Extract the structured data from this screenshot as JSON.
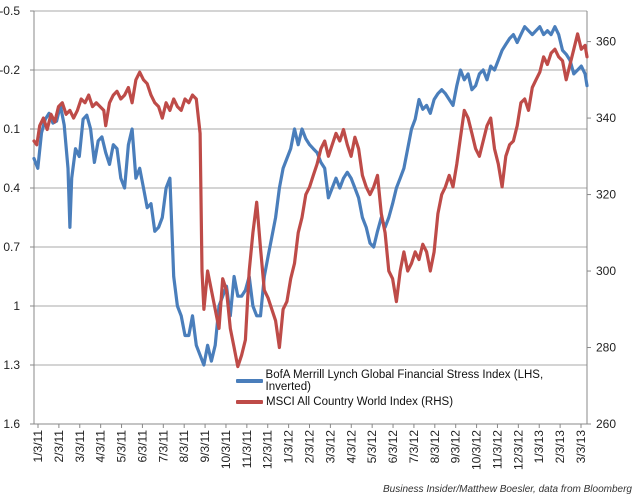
{
  "chart_data": {
    "type": "line",
    "title": "",
    "x_ticks": [
      "1/3/11",
      "2/3/11",
      "3/3/11",
      "4/3/11",
      "5/3/11",
      "6/3/11",
      "7/3/11",
      "8/3/11",
      "9/3/11",
      "10/3/11",
      "11/3/11",
      "12/3/11",
      "1/3/12",
      "2/3/12",
      "3/3/12",
      "4/3/12",
      "5/3/12",
      "6/3/12",
      "7/3/12",
      "8/3/12",
      "9/3/12",
      "10/3/12",
      "11/3/12",
      "12/3/12",
      "1/3/13",
      "2/3/13",
      "3/3/13"
    ],
    "left_axis": {
      "ticks": [
        "-0.5",
        "-0.2",
        "0.1",
        "0.4",
        "0.7",
        "1",
        "1.3",
        "1.6"
      ],
      "min": -0.5,
      "max": 1.6,
      "inverted": true
    },
    "right_axis": {
      "ticks": [
        "360",
        "340",
        "320",
        "300",
        "280",
        "260"
      ],
      "min": 260,
      "max": 368
    },
    "grid": true,
    "legend_position": "bottom-right",
    "series": [
      {
        "name": "BofA Merrill Lynch Global Financial Stress Index (LHS, Inverted)",
        "color": "#4a7ebb",
        "axis": "left",
        "points": [
          [
            0,
            0.25
          ],
          [
            4,
            0.3
          ],
          [
            8,
            0.12
          ],
          [
            12,
            0.05
          ],
          [
            16,
            0.02
          ],
          [
            20,
            0.07
          ],
          [
            24,
            0.06
          ],
          [
            28,
            -0.02
          ],
          [
            32,
            0.08
          ],
          [
            36,
            0.3
          ],
          [
            38,
            0.6
          ],
          [
            40,
            0.35
          ],
          [
            44,
            0.2
          ],
          [
            48,
            0.24
          ],
          [
            52,
            0.05
          ],
          [
            56,
            0.03
          ],
          [
            60,
            0.1
          ],
          [
            64,
            0.27
          ],
          [
            68,
            0.16
          ],
          [
            72,
            0.14
          ],
          [
            76,
            0.22
          ],
          [
            80,
            0.28
          ],
          [
            84,
            0.18
          ],
          [
            88,
            0.2
          ],
          [
            92,
            0.35
          ],
          [
            96,
            0.4
          ],
          [
            100,
            0.18
          ],
          [
            104,
            0.1
          ],
          [
            108,
            0.35
          ],
          [
            112,
            0.3
          ],
          [
            116,
            0.4
          ],
          [
            120,
            0.5
          ],
          [
            124,
            0.48
          ],
          [
            128,
            0.62
          ],
          [
            132,
            0.6
          ],
          [
            136,
            0.55
          ],
          [
            140,
            0.4
          ],
          [
            144,
            0.35
          ],
          [
            148,
            0.85
          ],
          [
            152,
            1.0
          ],
          [
            156,
            1.05
          ],
          [
            160,
            1.15
          ],
          [
            164,
            1.15
          ],
          [
            168,
            1.05
          ],
          [
            172,
            1.2
          ],
          [
            176,
            1.25
          ],
          [
            180,
            1.3
          ],
          [
            184,
            1.2
          ],
          [
            188,
            1.28
          ],
          [
            192,
            1.2
          ],
          [
            196,
            1.0
          ],
          [
            200,
            0.95
          ],
          [
            204,
            0.9
          ],
          [
            208,
            1.05
          ],
          [
            212,
            0.85
          ],
          [
            216,
            0.95
          ],
          [
            220,
            0.95
          ],
          [
            224,
            0.92
          ],
          [
            228,
            0.85
          ],
          [
            232,
            1.0
          ],
          [
            236,
            1.05
          ],
          [
            240,
            1.05
          ],
          [
            244,
            0.85
          ],
          [
            248,
            0.75
          ],
          [
            252,
            0.65
          ],
          [
            256,
            0.55
          ],
          [
            260,
            0.4
          ],
          [
            264,
            0.3
          ],
          [
            268,
            0.25
          ],
          [
            272,
            0.2
          ],
          [
            276,
            0.1
          ],
          [
            280,
            0.18
          ],
          [
            284,
            0.1
          ],
          [
            288,
            0.15
          ],
          [
            292,
            0.18
          ],
          [
            296,
            0.2
          ],
          [
            300,
            0.22
          ],
          [
            304,
            0.27
          ],
          [
            308,
            0.3
          ],
          [
            312,
            0.45
          ],
          [
            316,
            0.4
          ],
          [
            320,
            0.35
          ],
          [
            324,
            0.4
          ],
          [
            328,
            0.35
          ],
          [
            332,
            0.32
          ],
          [
            336,
            0.35
          ],
          [
            340,
            0.4
          ],
          [
            344,
            0.45
          ],
          [
            348,
            0.55
          ],
          [
            352,
            0.6
          ],
          [
            356,
            0.68
          ],
          [
            360,
            0.7
          ],
          [
            364,
            0.62
          ],
          [
            368,
            0.55
          ],
          [
            372,
            0.6
          ],
          [
            376,
            0.55
          ],
          [
            380,
            0.48
          ],
          [
            384,
            0.4
          ],
          [
            388,
            0.35
          ],
          [
            392,
            0.3
          ],
          [
            396,
            0.2
          ],
          [
            400,
            0.1
          ],
          [
            404,
            0.05
          ],
          [
            408,
            -0.05
          ],
          [
            412,
            0.0
          ],
          [
            416,
            -0.02
          ],
          [
            420,
            0.02
          ],
          [
            424,
            -0.05
          ],
          [
            428,
            -0.08
          ],
          [
            432,
            -0.1
          ],
          [
            436,
            -0.08
          ],
          [
            440,
            -0.05
          ],
          [
            444,
            -0.02
          ],
          [
            448,
            -0.12
          ],
          [
            452,
            -0.2
          ],
          [
            456,
            -0.15
          ],
          [
            460,
            -0.18
          ],
          [
            464,
            -0.1
          ],
          [
            468,
            -0.12
          ],
          [
            472,
            -0.18
          ],
          [
            476,
            -0.2
          ],
          [
            480,
            -0.15
          ],
          [
            484,
            -0.22
          ],
          [
            488,
            -0.2
          ],
          [
            492,
            -0.25
          ],
          [
            496,
            -0.3
          ],
          [
            500,
            -0.33
          ],
          [
            504,
            -0.36
          ],
          [
            508,
            -0.38
          ],
          [
            512,
            -0.34
          ],
          [
            516,
            -0.38
          ],
          [
            520,
            -0.42
          ],
          [
            524,
            -0.4
          ],
          [
            528,
            -0.38
          ],
          [
            532,
            -0.4
          ],
          [
            536,
            -0.42
          ],
          [
            540,
            -0.38
          ],
          [
            544,
            -0.4
          ],
          [
            548,
            -0.38
          ],
          [
            552,
            -0.42
          ],
          [
            556,
            -0.38
          ],
          [
            560,
            -0.3
          ],
          [
            564,
            -0.28
          ],
          [
            568,
            -0.25
          ],
          [
            572,
            -0.18
          ],
          [
            576,
            -0.2
          ],
          [
            580,
            -0.22
          ],
          [
            584,
            -0.18
          ],
          [
            586,
            -0.12
          ]
        ]
      },
      {
        "name": "MSCI All Country World Index (RHS)",
        "color": "#be4b48",
        "axis": "right",
        "points": [
          [
            0,
            334
          ],
          [
            3,
            333
          ],
          [
            6,
            338
          ],
          [
            10,
            340
          ],
          [
            14,
            337
          ],
          [
            18,
            341
          ],
          [
            22,
            339
          ],
          [
            26,
            343
          ],
          [
            30,
            344
          ],
          [
            34,
            341
          ],
          [
            38,
            342
          ],
          [
            42,
            340
          ],
          [
            46,
            342
          ],
          [
            50,
            345
          ],
          [
            54,
            344
          ],
          [
            58,
            346
          ],
          [
            62,
            343
          ],
          [
            66,
            344
          ],
          [
            70,
            343
          ],
          [
            74,
            342
          ],
          [
            76,
            338
          ],
          [
            80,
            344
          ],
          [
            84,
            346
          ],
          [
            88,
            347
          ],
          [
            92,
            345
          ],
          [
            96,
            346
          ],
          [
            100,
            348
          ],
          [
            104,
            344
          ],
          [
            108,
            350
          ],
          [
            112,
            352
          ],
          [
            116,
            350
          ],
          [
            120,
            349
          ],
          [
            124,
            346
          ],
          [
            128,
            344
          ],
          [
            132,
            343
          ],
          [
            136,
            340
          ],
          [
            140,
            344
          ],
          [
            144,
            342
          ],
          [
            148,
            345
          ],
          [
            152,
            343
          ],
          [
            156,
            342
          ],
          [
            160,
            345
          ],
          [
            164,
            344
          ],
          [
            168,
            346
          ],
          [
            172,
            345
          ],
          [
            176,
            336
          ],
          [
            178,
            300
          ],
          [
            180,
            290
          ],
          [
            184,
            300
          ],
          [
            188,
            295
          ],
          [
            192,
            290
          ],
          [
            196,
            285
          ],
          [
            200,
            298
          ],
          [
            204,
            295
          ],
          [
            208,
            285
          ],
          [
            212,
            280
          ],
          [
            216,
            275
          ],
          [
            220,
            278
          ],
          [
            224,
            282
          ],
          [
            228,
            300
          ],
          [
            232,
            310
          ],
          [
            236,
            318
          ],
          [
            240,
            306
          ],
          [
            244,
            295
          ],
          [
            248,
            293
          ],
          [
            252,
            290
          ],
          [
            256,
            287
          ],
          [
            260,
            280
          ],
          [
            264,
            290
          ],
          [
            268,
            292
          ],
          [
            272,
            298
          ],
          [
            276,
            302
          ],
          [
            280,
            310
          ],
          [
            284,
            314
          ],
          [
            288,
            320
          ],
          [
            292,
            322
          ],
          [
            296,
            325
          ],
          [
            300,
            328
          ],
          [
            304,
            332
          ],
          [
            308,
            334
          ],
          [
            312,
            330
          ],
          [
            316,
            333
          ],
          [
            320,
            336
          ],
          [
            324,
            334
          ],
          [
            328,
            337
          ],
          [
            332,
            333
          ],
          [
            336,
            330
          ],
          [
            340,
            335
          ],
          [
            344,
            332
          ],
          [
            348,
            325
          ],
          [
            352,
            322
          ],
          [
            356,
            320
          ],
          [
            360,
            322
          ],
          [
            364,
            325
          ],
          [
            368,
            315
          ],
          [
            372,
            310
          ],
          [
            376,
            300
          ],
          [
            380,
            298
          ],
          [
            384,
            292
          ],
          [
            388,
            300
          ],
          [
            392,
            305
          ],
          [
            396,
            300
          ],
          [
            400,
            302
          ],
          [
            404,
            305
          ],
          [
            408,
            303
          ],
          [
            412,
            307
          ],
          [
            416,
            305
          ],
          [
            420,
            300
          ],
          [
            424,
            305
          ],
          [
            428,
            315
          ],
          [
            432,
            320
          ],
          [
            436,
            322
          ],
          [
            440,
            325
          ],
          [
            444,
            322
          ],
          [
            448,
            328
          ],
          [
            452,
            335
          ],
          [
            456,
            342
          ],
          [
            460,
            340
          ],
          [
            464,
            336
          ],
          [
            468,
            332
          ],
          [
            472,
            330
          ],
          [
            476,
            334
          ],
          [
            480,
            338
          ],
          [
            484,
            340
          ],
          [
            488,
            332
          ],
          [
            492,
            328
          ],
          [
            496,
            322
          ],
          [
            500,
            330
          ],
          [
            504,
            333
          ],
          [
            508,
            334
          ],
          [
            512,
            338
          ],
          [
            516,
            344
          ],
          [
            520,
            345
          ],
          [
            524,
            342
          ],
          [
            528,
            348
          ],
          [
            532,
            350
          ],
          [
            536,
            352
          ],
          [
            540,
            356
          ],
          [
            544,
            354
          ],
          [
            548,
            357
          ],
          [
            552,
            358
          ],
          [
            556,
            356
          ],
          [
            560,
            355
          ],
          [
            564,
            350
          ],
          [
            568,
            354
          ],
          [
            572,
            358
          ],
          [
            576,
            362
          ],
          [
            580,
            358
          ],
          [
            584,
            359
          ],
          [
            586,
            356
          ]
        ]
      }
    ]
  },
  "legend": {
    "items": [
      {
        "label": "BofA Merrill Lynch Global Financial Stress Index (LHS, Inverted)",
        "color": "#4a7ebb"
      },
      {
        "label": "MSCI All Country World Index (RHS)",
        "color": "#be4b48"
      }
    ]
  },
  "source_text": "Business Insider/Matthew Boesler, data from Bloomberg"
}
